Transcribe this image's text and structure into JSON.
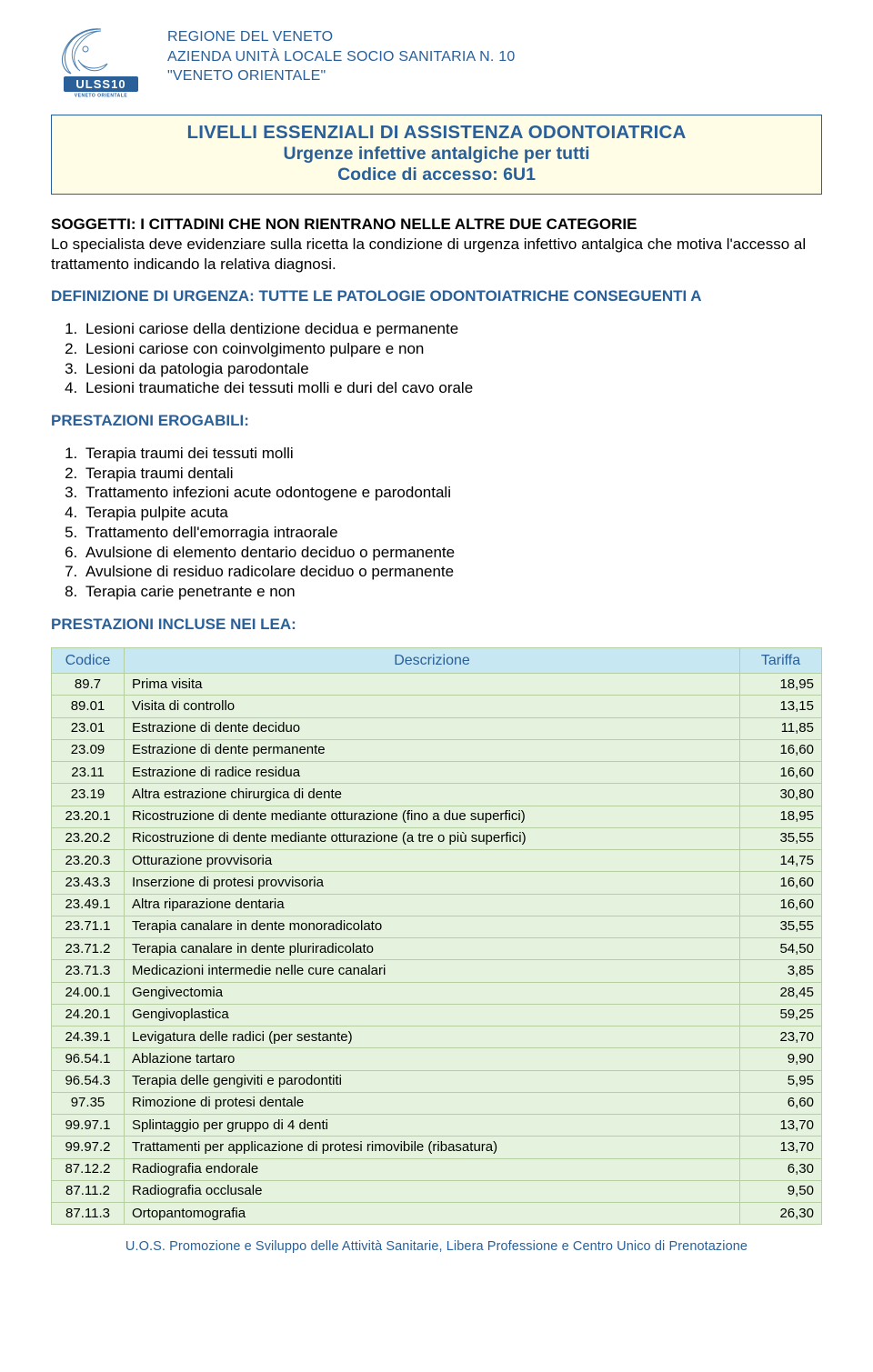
{
  "header": {
    "org_line1": "REGIONE DEL VENETO",
    "org_line2": "AZIENDA UNITÀ LOCALE SOCIO SANITARIA N. 10",
    "org_line3": "\"VENETO ORIENTALE\"",
    "logo_label": "ULSS10",
    "logo_sub": "VENETO ORIENTALE"
  },
  "title": {
    "line1": "LIVELLI ESSENZIALI DI ASSISTENZA ODONTOIATRICA",
    "line2": "Urgenze infettive antalgiche per tutti",
    "line3": "Codice di accesso: 6U1"
  },
  "subjects": {
    "heading": "SOGGETTI: I CITTADINI CHE NON RIENTRANO NELLE ALTRE DUE CATEGORIE",
    "body": "Lo specialista deve evidenziare sulla ricetta la condizione di urgenza infettivo antalgica che motiva l'accesso al trattamento indicando la relativa diagnosi."
  },
  "definition": {
    "heading": "DEFINIZIONE DI URGENZA: TUTTE LE PATOLOGIE ODONTOIATRICHE CONSEGUENTI A",
    "items": [
      "Lesioni cariose della dentizione decidua e permanente",
      "Lesioni cariose con coinvolgimento pulpare e non",
      "Lesioni da patologia parodontale",
      "Lesioni traumatiche dei tessuti molli e duri del cavo orale"
    ]
  },
  "prestazioni": {
    "heading": "PRESTAZIONI EROGABILI:",
    "items": [
      "Terapia traumi dei tessuti molli",
      "Terapia traumi dentali",
      "Trattamento infezioni acute odontogene e parodontali",
      "Terapia pulpite acuta",
      "Trattamento dell'emorragia intraorale",
      "Avulsione di elemento dentario deciduo o permanente",
      "Avulsione di residuo radicolare deciduo o permanente",
      "Terapia carie penetrante e non"
    ]
  },
  "lea": {
    "heading": "PRESTAZIONI INCLUSE NEI LEA:",
    "columns": {
      "code": "Codice",
      "desc": "Descrizione",
      "tariff": "Tariffa"
    },
    "rows": [
      {
        "code": "89.7",
        "desc": "Prima visita",
        "tariff": "18,95"
      },
      {
        "code": "89.01",
        "desc": "Visita di controllo",
        "tariff": "13,15"
      },
      {
        "code": "23.01",
        "desc": "Estrazione di dente deciduo",
        "tariff": "11,85"
      },
      {
        "code": "23.09",
        "desc": "Estrazione di dente permanente",
        "tariff": "16,60"
      },
      {
        "code": "23.11",
        "desc": "Estrazione di radice residua",
        "tariff": "16,60"
      },
      {
        "code": "23.19",
        "desc": "Altra estrazione chirurgica di dente",
        "tariff": "30,80"
      },
      {
        "code": "23.20.1",
        "desc": "Ricostruzione di dente mediante otturazione (fino a due superfici)",
        "tariff": "18,95"
      },
      {
        "code": "23.20.2",
        "desc": "Ricostruzione di dente mediante otturazione (a tre o più superfici)",
        "tariff": "35,55"
      },
      {
        "code": "23.20.3",
        "desc": "Otturazione provvisoria",
        "tariff": "14,75"
      },
      {
        "code": "23.43.3",
        "desc": "Inserzione di protesi provvisoria",
        "tariff": "16,60"
      },
      {
        "code": "23.49.1",
        "desc": "Altra riparazione dentaria",
        "tariff": "16,60"
      },
      {
        "code": "23.71.1",
        "desc": "Terapia canalare in dente monoradicolato",
        "tariff": "35,55"
      },
      {
        "code": "23.71.2",
        "desc": "Terapia canalare in dente pluriradicolato",
        "tariff": "54,50"
      },
      {
        "code": "23.71.3",
        "desc": "Medicazioni intermedie nelle cure canalari",
        "tariff": "3,85"
      },
      {
        "code": "24.00.1",
        "desc": "Gengivectomia",
        "tariff": "28,45"
      },
      {
        "code": "24.20.1",
        "desc": "Gengivoplastica",
        "tariff": "59,25"
      },
      {
        "code": "24.39.1",
        "desc": "Levigatura delle radici (per sestante)",
        "tariff": "23,70"
      },
      {
        "code": "96.54.1",
        "desc": "Ablazione tartaro",
        "tariff": "9,90"
      },
      {
        "code": "96.54.3",
        "desc": "Terapia delle gengiviti e parodontiti",
        "tariff": "5,95"
      },
      {
        "code": "97.35",
        "desc": "Rimozione di protesi dentale",
        "tariff": "6,60"
      },
      {
        "code": "99.97.1",
        "desc": "Splintaggio per gruppo di 4 denti",
        "tariff": "13,70"
      },
      {
        "code": "99.97.2",
        "desc": "Trattamenti per applicazione di protesi rimovibile (ribasatura)",
        "tariff": "13,70"
      },
      {
        "code": "87.12.2",
        "desc": "Radiografia endorale",
        "tariff": "6,30"
      },
      {
        "code": "87.11.2",
        "desc": "Radiografia occlusale",
        "tariff": "9,50"
      },
      {
        "code": "87.11.3",
        "desc": "Ortopantomografia",
        "tariff": "26,30"
      }
    ]
  },
  "footer": "U.O.S. Promozione e Sviluppo delle Attività Sanitarie, Libera Professione e Centro Unico di Prenotazione",
  "style": {
    "brand_blue": "#2a6099",
    "titlebox_bg": "#fffde6",
    "th_bg": "#c7e7f3",
    "td_bg": "#e5f3de",
    "border_color": "#b5cfa3"
  }
}
